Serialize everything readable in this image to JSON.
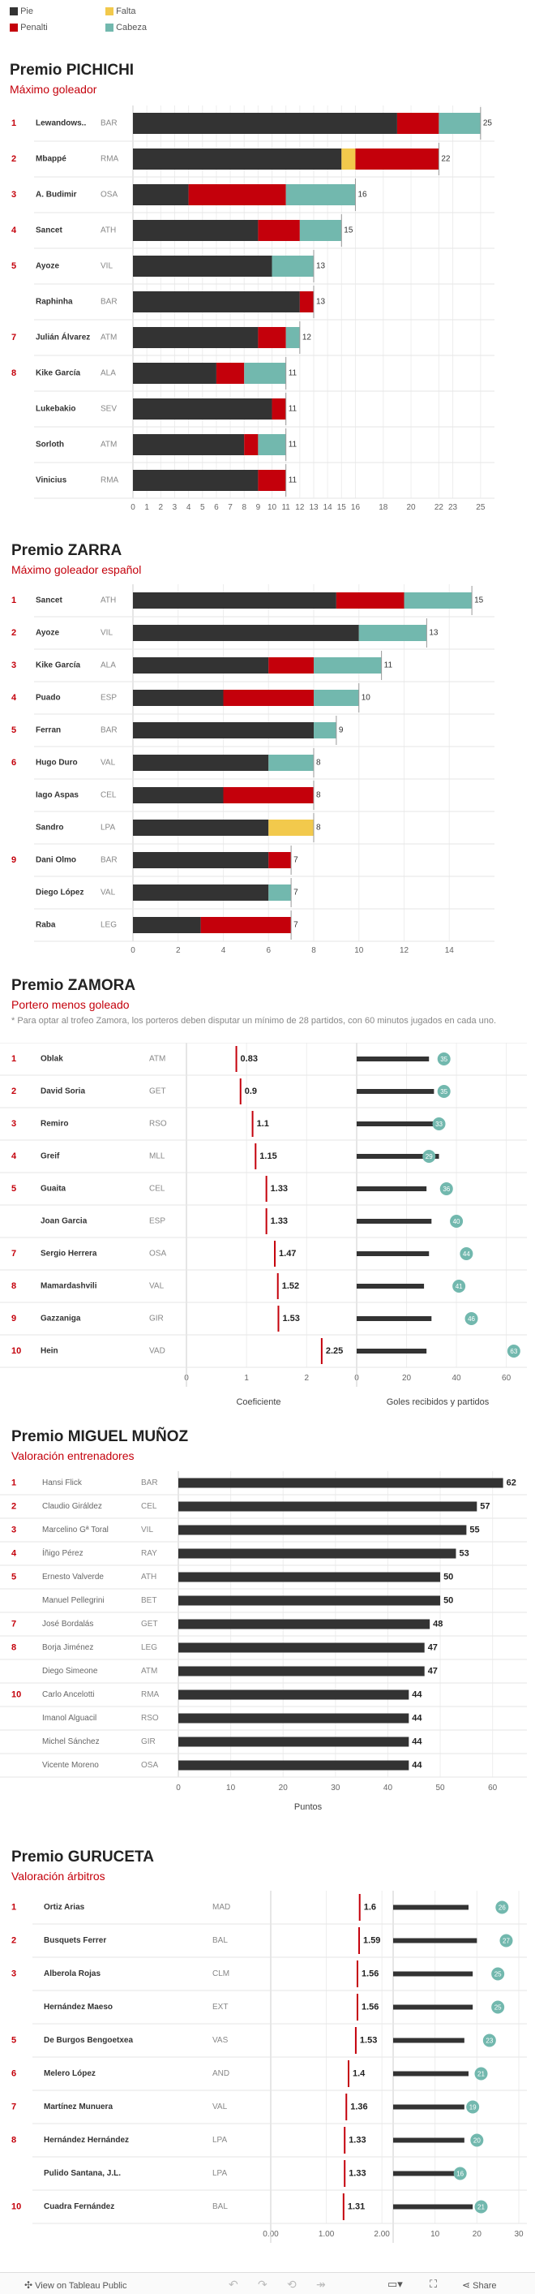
{
  "legend": {
    "items": [
      {
        "label": "Pie",
        "color": "#333333"
      },
      {
        "label": "Falta",
        "color": "#f2c94c"
      },
      {
        "label": "Penalti",
        "color": "#c4000b"
      },
      {
        "label": "Cabeza",
        "color": "#72b8ae"
      }
    ]
  },
  "pichichi": {
    "title": "Premio PICHICHI",
    "subtitle": "Máximo goleador"
  },
  "zarra": {
    "title": "Premio ZARRA",
    "subtitle": "Máximo goleador español"
  },
  "zamora": {
    "title": "Premio ZAMORA",
    "subtitle": "Portero menos goleado",
    "note": "* Para optar al trofeo Zamora, los porteros deben disputar un mínimo de 28 partidos, con 60 minutos jugados en cada uno."
  },
  "munoz": {
    "title": "Premio MIGUEL MUÑOZ",
    "subtitle": "Valoración entrenadores"
  },
  "guruceta": {
    "title": "Premio GURUCETA",
    "subtitle": "Valoración árbitros"
  },
  "footer": {
    "view_label": "View on Tableau Public",
    "share_label": "Share"
  },
  "chart_data": [
    {
      "type": "bar",
      "stacked": true,
      "orientation": "horizontal",
      "xlim": [
        0,
        26
      ],
      "xticks": [
        0,
        1,
        2,
        3,
        4,
        5,
        6,
        7,
        8,
        9,
        10,
        11,
        12,
        13,
        14,
        15,
        16,
        18,
        20,
        22,
        23,
        25
      ],
      "rows": [
        {
          "rank": "1",
          "name": "Lewandows..",
          "team": "BAR",
          "pie": 19,
          "falta": 0,
          "penalti": 3,
          "cabeza": 3,
          "total": 25
        },
        {
          "rank": "2",
          "name": "Mbappé",
          "team": "RMA",
          "pie": 15,
          "falta": 1,
          "penalti": 6,
          "cabeza": 0,
          "total": 22
        },
        {
          "rank": "3",
          "name": "A. Budimir",
          "team": "OSA",
          "pie": 4,
          "falta": 0,
          "penalti": 7,
          "cabeza": 5,
          "total": 16
        },
        {
          "rank": "4",
          "name": "Sancet",
          "team": "ATH",
          "pie": 9,
          "falta": 0,
          "penalti": 3,
          "cabeza": 3,
          "total": 15
        },
        {
          "rank": "5",
          "name": "Ayoze",
          "team": "VIL",
          "pie": 10,
          "falta": 0,
          "penalti": 0,
          "cabeza": 3,
          "total": 13
        },
        {
          "rank": "",
          "name": "Raphinha",
          "team": "BAR",
          "pie": 12,
          "falta": 0,
          "penalti": 1,
          "cabeza": 0,
          "total": 13
        },
        {
          "rank": "7",
          "name": "Julián Álvarez",
          "team": "ATM",
          "pie": 9,
          "falta": 0,
          "penalti": 2,
          "cabeza": 1,
          "total": 12
        },
        {
          "rank": "8",
          "name": "Kike García",
          "team": "ALA",
          "pie": 6,
          "falta": 0,
          "penalti": 2,
          "cabeza": 3,
          "total": 11
        },
        {
          "rank": "",
          "name": "Lukebakio",
          "team": "SEV",
          "pie": 10,
          "falta": 0,
          "penalti": 1,
          "cabeza": 0,
          "total": 11
        },
        {
          "rank": "",
          "name": "Sorloth",
          "team": "ATM",
          "pie": 8,
          "falta": 0,
          "penalti": 1,
          "cabeza": 2,
          "total": 11
        },
        {
          "rank": "",
          "name": "Vinicius",
          "team": "RMA",
          "pie": 9,
          "falta": 0,
          "penalti": 2,
          "cabeza": 0,
          "total": 11
        }
      ]
    },
    {
      "type": "bar",
      "stacked": true,
      "orientation": "horizontal",
      "xlim": [
        0,
        16
      ],
      "xticks": [
        0,
        2,
        4,
        6,
        8,
        10,
        12,
        14
      ],
      "rows": [
        {
          "rank": "1",
          "name": "Sancet",
          "team": "ATH",
          "pie": 9,
          "falta": 0,
          "penalti": 3,
          "cabeza": 3,
          "total": 15
        },
        {
          "rank": "2",
          "name": "Ayoze",
          "team": "VIL",
          "pie": 10,
          "falta": 0,
          "penalti": 0,
          "cabeza": 3,
          "total": 13
        },
        {
          "rank": "3",
          "name": "Kike García",
          "team": "ALA",
          "pie": 6,
          "falta": 0,
          "penalti": 2,
          "cabeza": 3,
          "total": 11
        },
        {
          "rank": "4",
          "name": "Puado",
          "team": "ESP",
          "pie": 4,
          "falta": 0,
          "penalti": 4,
          "cabeza": 2,
          "total": 10
        },
        {
          "rank": "5",
          "name": "Ferran",
          "team": "BAR",
          "pie": 8,
          "falta": 0,
          "penalti": 0,
          "cabeza": 1,
          "total": 9
        },
        {
          "rank": "6",
          "name": "Hugo Duro",
          "team": "VAL",
          "pie": 6,
          "falta": 0,
          "penalti": 0,
          "cabeza": 2,
          "total": 8
        },
        {
          "rank": "",
          "name": "Iago Aspas",
          "team": "CEL",
          "pie": 4,
          "falta": 0,
          "penalti": 4,
          "cabeza": 0,
          "total": 8
        },
        {
          "rank": "",
          "name": "Sandro",
          "team": "LPA",
          "pie": 6,
          "falta": 2,
          "penalti": 0,
          "cabeza": 0,
          "total": 8
        },
        {
          "rank": "9",
          "name": "Dani Olmo",
          "team": "BAR",
          "pie": 6,
          "falta": 0,
          "penalti": 1,
          "cabeza": 0,
          "total": 7
        },
        {
          "rank": "",
          "name": "Diego López",
          "team": "VAL",
          "pie": 6,
          "falta": 0,
          "penalti": 0,
          "cabeza": 1,
          "total": 7
        },
        {
          "rank": "",
          "name": "Raba",
          "team": "LEG",
          "pie": 3,
          "falta": 0,
          "penalti": 4,
          "cabeza": 0,
          "total": 7
        }
      ]
    },
    {
      "type": "dot",
      "xlabel": "Coeficiente",
      "x2label": "Goles recibidos y partidos",
      "xlim": [
        0,
        2.4
      ],
      "xticks": [
        0,
        1,
        2
      ],
      "x2lim": [
        0,
        65
      ],
      "x2ticks": [
        0,
        20,
        40,
        60
      ],
      "rows": [
        {
          "rank": "1",
          "name": "Oblak",
          "team": "ATM",
          "coef": "0.83",
          "goals": 29,
          "matches": 35
        },
        {
          "rank": "2",
          "name": "David Soria",
          "team": "GET",
          "coef": "0.9",
          "goals": 31,
          "matches": 35
        },
        {
          "rank": "3",
          "name": "Remiro",
          "team": "RSO",
          "coef": "1.1",
          "goals": 35,
          "matches": 33
        },
        {
          "rank": "4",
          "name": "Greif",
          "team": "MLL",
          "coef": "1.15",
          "goals": 33,
          "matches": 29
        },
        {
          "rank": "5",
          "name": "Guaita",
          "team": "CEL",
          "coef": "1.33",
          "goals": 28,
          "matches": 36
        },
        {
          "rank": "",
          "name": "Joan Garcia",
          "team": "ESP",
          "coef": "1.33",
          "goals": 30,
          "matches": 40
        },
        {
          "rank": "7",
          "name": "Sergio Herrera",
          "team": "OSA",
          "coef": "1.47",
          "goals": 29,
          "matches": 44
        },
        {
          "rank": "8",
          "name": "Mamardashvili",
          "team": "VAL",
          "coef": "1.52",
          "goals": 27,
          "matches": 41
        },
        {
          "rank": "9",
          "name": "Gazzaniga",
          "team": "GIR",
          "coef": "1.53",
          "goals": 30,
          "matches": 46
        },
        {
          "rank": "10",
          "name": "Hein",
          "team": "VAD",
          "coef": "2.25",
          "goals": 28,
          "matches": 63
        }
      ]
    },
    {
      "type": "bar",
      "orientation": "horizontal",
      "xlabel": "Puntos",
      "xlim": [
        0,
        65
      ],
      "xticks": [
        0,
        10,
        20,
        30,
        40,
        50,
        60
      ],
      "rows": [
        {
          "rank": "1",
          "name": "Hansi Flick",
          "team": "BAR",
          "value": 62
        },
        {
          "rank": "2",
          "name": "Claudio Giráldez",
          "team": "CEL",
          "value": 57
        },
        {
          "rank": "3",
          "name": "Marcelino Gª Toral",
          "team": "VIL",
          "value": 55
        },
        {
          "rank": "4",
          "name": "Íñigo Pérez",
          "team": "RAY",
          "value": 53
        },
        {
          "rank": "5",
          "name": "Ernesto Valverde",
          "team": "ATH",
          "value": 50
        },
        {
          "rank": "",
          "name": "Manuel Pellegrini",
          "team": "BET",
          "value": 50
        },
        {
          "rank": "7",
          "name": "José Bordalás",
          "team": "GET",
          "value": 48
        },
        {
          "rank": "8",
          "name": "Borja Jiménez",
          "team": "LEG",
          "value": 47
        },
        {
          "rank": "",
          "name": "Diego Simeone",
          "team": "ATM",
          "value": 47
        },
        {
          "rank": "10",
          "name": "Carlo Ancelotti",
          "team": "RMA",
          "value": 44
        },
        {
          "rank": "",
          "name": "Imanol Alguacil",
          "team": "RSO",
          "value": 44
        },
        {
          "rank": "",
          "name": "Michel Sánchez",
          "team": "GIR",
          "value": 44
        },
        {
          "rank": "",
          "name": "Vicente Moreno",
          "team": "OSA",
          "value": 44
        }
      ]
    },
    {
      "type": "dot",
      "xlim": [
        0,
        2.1
      ],
      "xticks": [
        "0.00",
        "1.00",
        "2.00"
      ],
      "x2lim": [
        0,
        30
      ],
      "x2ticks": [
        10,
        20,
        30
      ],
      "rows": [
        {
          "rank": "1",
          "name": "Ortiz Arias",
          "team": "MAD",
          "coef": "1.6",
          "val": 18,
          "games": 26
        },
        {
          "rank": "2",
          "name": "Busquets Ferrer",
          "team": "BAL",
          "coef": "1.59",
          "val": 20,
          "games": 27
        },
        {
          "rank": "3",
          "name": "Alberola Rojas",
          "team": "CLM",
          "coef": "1.56",
          "val": 19,
          "games": 25
        },
        {
          "rank": "",
          "name": "Hernández Maeso",
          "team": "EXT",
          "coef": "1.56",
          "val": 19,
          "games": 25
        },
        {
          "rank": "5",
          "name": "De Burgos Bengoetxea",
          "team": "VAS",
          "coef": "1.53",
          "val": 17,
          "games": 23
        },
        {
          "rank": "6",
          "name": "Melero López",
          "team": "AND",
          "coef": "1.4",
          "val": 18,
          "games": 21
        },
        {
          "rank": "7",
          "name": "Martínez Munuera",
          "team": "VAL",
          "coef": "1.36",
          "val": 17,
          "games": 19
        },
        {
          "rank": "8",
          "name": "Hernández Hernández",
          "team": "LPA",
          "coef": "1.33",
          "val": 17,
          "games": 20
        },
        {
          "rank": "",
          "name": "Pulido Santana, J.L.",
          "team": "LPA",
          "coef": "1.33",
          "val": 15,
          "games": 16
        },
        {
          "rank": "10",
          "name": "Cuadra Fernández",
          "team": "BAL",
          "coef": "1.31",
          "val": 19,
          "games": 21
        }
      ]
    }
  ]
}
